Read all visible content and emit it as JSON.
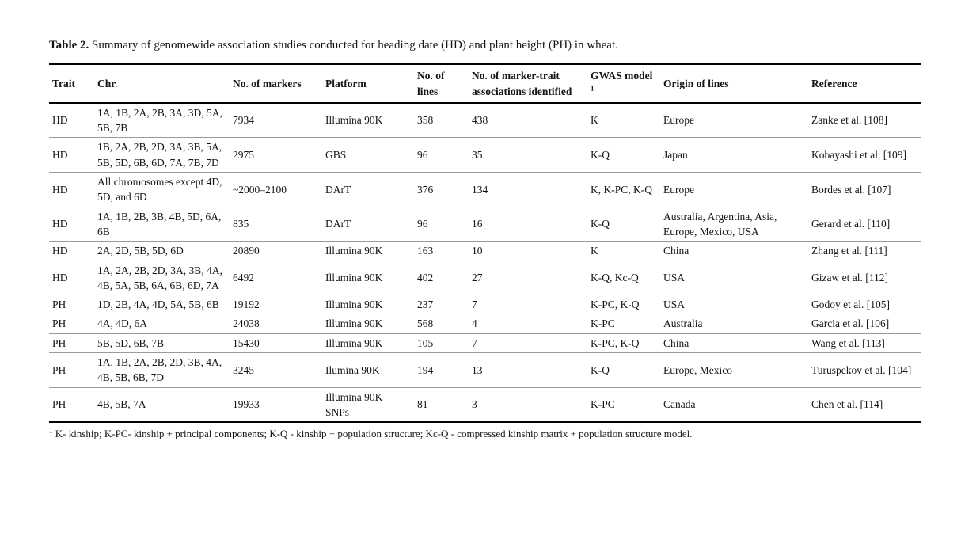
{
  "caption": {
    "label": "Table 2.",
    "text": " Summary of genomewide association studies conducted for heading date (HD) and plant height (PH) in wheat."
  },
  "table": {
    "columns": [
      {
        "key": "trait",
        "label": "Trait"
      },
      {
        "key": "chr",
        "label": "Chr."
      },
      {
        "key": "markers",
        "label": "No. of markers"
      },
      {
        "key": "platform",
        "label": "Platform"
      },
      {
        "key": "lines",
        "label": "No. of lines"
      },
      {
        "key": "associations",
        "label": "No. of marker-trait associations identified"
      },
      {
        "key": "gwas",
        "label": "GWAS model",
        "sup": "1"
      },
      {
        "key": "origin",
        "label": "Origin of lines"
      },
      {
        "key": "reference",
        "label": "Reference"
      }
    ],
    "rows": [
      {
        "trait": "HD",
        "chr": "1A, 1B, 2A, 2B, 3A, 3D, 5A, 5B, 7B",
        "markers": "7934",
        "platform": "Illumina 90K",
        "lines": "358",
        "associations": "438",
        "gwas": "K",
        "origin": "Europe",
        "reference": "Zanke et al. [108]"
      },
      {
        "trait": "HD",
        "chr": "1B, 2A, 2B, 2D, 3A, 3B, 5A, 5B, 5D, 6B, 6D, 7A, 7B, 7D",
        "markers": "2975",
        "platform": "GBS",
        "lines": "96",
        "associations": "35",
        "gwas": "K-Q",
        "origin": "Japan",
        "reference": "Kobayashi et al. [109]"
      },
      {
        "trait": "HD",
        "chr": "All chromosomes except 4D, 5D, and 6D",
        "markers": "~2000–2100",
        "platform": "DArT",
        "lines": "376",
        "associations": "134",
        "gwas": "K, K-PC, K-Q",
        "origin": "Europe",
        "reference": "Bordes et al. [107]"
      },
      {
        "trait": "HD",
        "chr": "1A, 1B, 2B, 3B, 4B, 5D, 6A, 6B",
        "markers": "835",
        "platform": "DArT",
        "lines": "96",
        "associations": "16",
        "gwas": "K-Q",
        "origin": "Australia, Argentina, Asia, Europe, Mexico, USA",
        "reference": "Gerard et al. [110]"
      },
      {
        "trait": "HD",
        "chr": "2A, 2D, 5B, 5D, 6D",
        "markers": "20890",
        "platform": "Illumina 90K",
        "lines": "163",
        "associations": "10",
        "gwas": "K",
        "origin": "China",
        "reference": "Zhang et al. [111]"
      },
      {
        "trait": "HD",
        "chr": "1A, 2A, 2B, 2D, 3A, 3B, 4A, 4B, 5A, 5B, 6A, 6B, 6D, 7A",
        "markers": "6492",
        "platform": "Illumina 90K",
        "lines": "402",
        "associations": "27",
        "gwas": "K-Q, Kc-Q",
        "origin": "USA",
        "reference": "Gizaw et al. [112]"
      },
      {
        "trait": "PH",
        "chr": "1D, 2B, 4A, 4D, 5A, 5B, 6B",
        "markers": "19192",
        "platform": "Illumina 90K",
        "lines": "237",
        "associations": "7",
        "gwas": "K-PC, K-Q",
        "origin": "USA",
        "reference": "Godoy et al. [105]"
      },
      {
        "trait": "PH",
        "chr": "4A, 4D, 6A",
        "markers": "24038",
        "platform": "Illumina 90K",
        "lines": "568",
        "associations": "4",
        "gwas": "K-PC",
        "origin": "Australia",
        "reference": "Garcia et al. [106]"
      },
      {
        "trait": "PH",
        "chr": "5B, 5D, 6B, 7B",
        "markers": "15430",
        "platform": "Illumina 90K",
        "lines": "105",
        "associations": "7",
        "gwas": "K-PC, K-Q",
        "origin": "China",
        "reference": "Wang et al. [113]"
      },
      {
        "trait": "PH",
        "chr": "1A, 1B, 2A, 2B, 2D, 3B, 4A, 4B, 5B, 6B, 7D",
        "markers": "3245",
        "platform": "Ilumina 90K",
        "lines": "194",
        "associations": "13",
        "gwas": "K-Q",
        "origin": "Europe, Mexico",
        "reference": "Turuspekov et al. [104]"
      },
      {
        "trait": "PH",
        "chr": "4B, 5B, 7A",
        "markers": "19933",
        "platform": "Illumina 90K SNPs",
        "lines": "81",
        "associations": "3",
        "gwas": "K-PC",
        "origin": "Canada",
        "reference": "Chen et al. [114]"
      }
    ]
  },
  "footnote": {
    "superscript": "1",
    "text": " K- kinship; K-PC- kinship + principal components; K-Q - kinship + population structure; Kc-Q - compressed kinship matrix + population structure model."
  }
}
